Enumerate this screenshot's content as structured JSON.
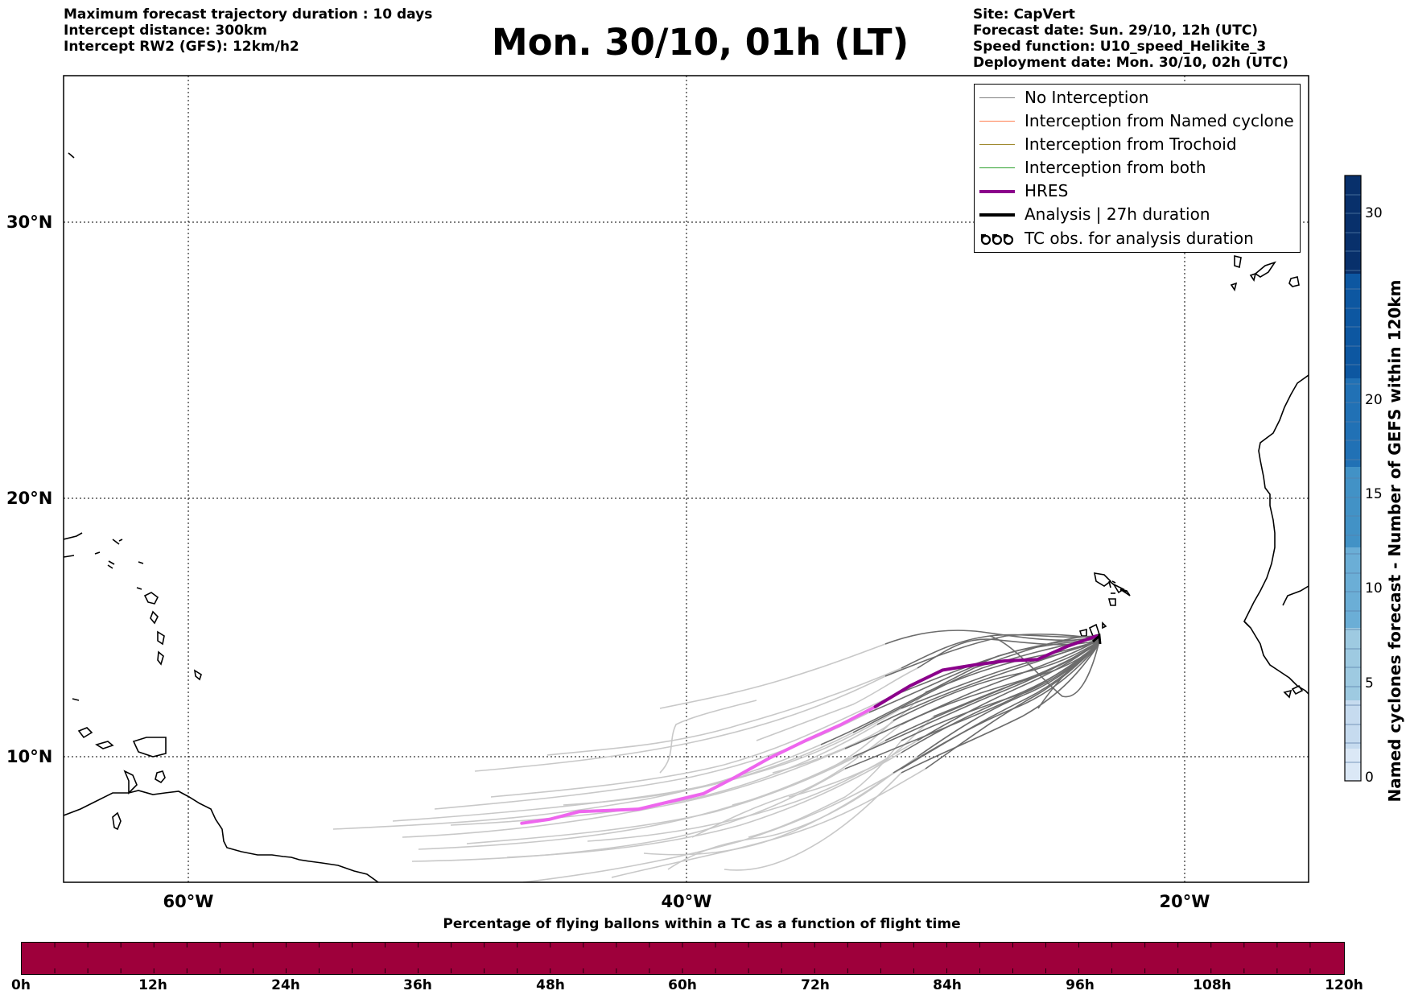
{
  "header_left": {
    "line1": "Maximum forecast trajectory duration : 10 days",
    "line2": "Intercept distance: 300km",
    "line3": "Intercept RW2 (GFS):  12km/h2"
  },
  "title": "Mon. 30/10, 01h (LT)",
  "header_right": {
    "line1": "Site: CapVert",
    "line2": "Forecast date: Sun. 29/10, 12h (UTC)",
    "line3": "Speed function: U10_speed_Helikite_3",
    "line4": "Deployment date: Mon. 30/10, 02h (UTC)"
  },
  "map": {
    "lon_labels": [
      "60°W",
      "40°W",
      "20°W"
    ],
    "lat_labels": [
      "30°N",
      "20°N",
      "10°N"
    ],
    "lon_range": [
      -65,
      -15
    ],
    "lat_range": [
      5.4,
      34.7
    ],
    "gridlines": "dotted"
  },
  "legend": {
    "items": [
      {
        "label": "No Interception",
        "color": "#808080"
      },
      {
        "label": "Interception from Named cyclone",
        "color": "#ff7f50"
      },
      {
        "label": "Interception from Trochoid",
        "color": "#a08a30"
      },
      {
        "label": "Interception from both",
        "color": "#2ca02c"
      },
      {
        "label": "HRES",
        "color": "#8b008b"
      },
      {
        "label": "Analysis | 27h duration",
        "color": "#000000"
      },
      {
        "label": "TC obs. for analysis duration",
        "color": "#000000"
      }
    ]
  },
  "deployment_site": {
    "lon": -23.5,
    "lat": 14.9
  },
  "hres_track": {
    "points_lon": [
      -46.6,
      -45.5,
      -44.3,
      -43.1,
      -41.9,
      -40.6,
      -39.3,
      -38.0,
      -36.7,
      -35.2,
      -33.8,
      -32.4,
      -31.0,
      -29.7,
      -28.4,
      -27.2,
      -25.9,
      -24.7,
      -23.5
    ],
    "points_lat": [
      7.7,
      7.85,
      8.15,
      8.2,
      8.25,
      8.55,
      8.85,
      9.5,
      10.2,
      10.9,
      11.5,
      12.2,
      13.0,
      13.6,
      13.8,
      13.95,
      14.0,
      14.5,
      14.9
    ],
    "color_late": "#8b008b",
    "color_early": "#ee66ee"
  },
  "colorbar": {
    "label": "Named cyclones forecast - Number of GEFS within 120km",
    "ticks": [
      "0",
      "5",
      "10",
      "15",
      "20",
      "30"
    ],
    "tick_values": [
      0,
      5,
      10,
      15,
      20,
      30
    ],
    "range": [
      0,
      32
    ]
  },
  "time_bar": {
    "title": "Percentage of flying ballons within a TC as a function of flight time",
    "ticks": [
      "0h",
      "12h",
      "24h",
      "36h",
      "48h",
      "60h",
      "72h",
      "84h",
      "96h",
      "108h",
      "120h"
    ],
    "color": "#9e003b"
  }
}
